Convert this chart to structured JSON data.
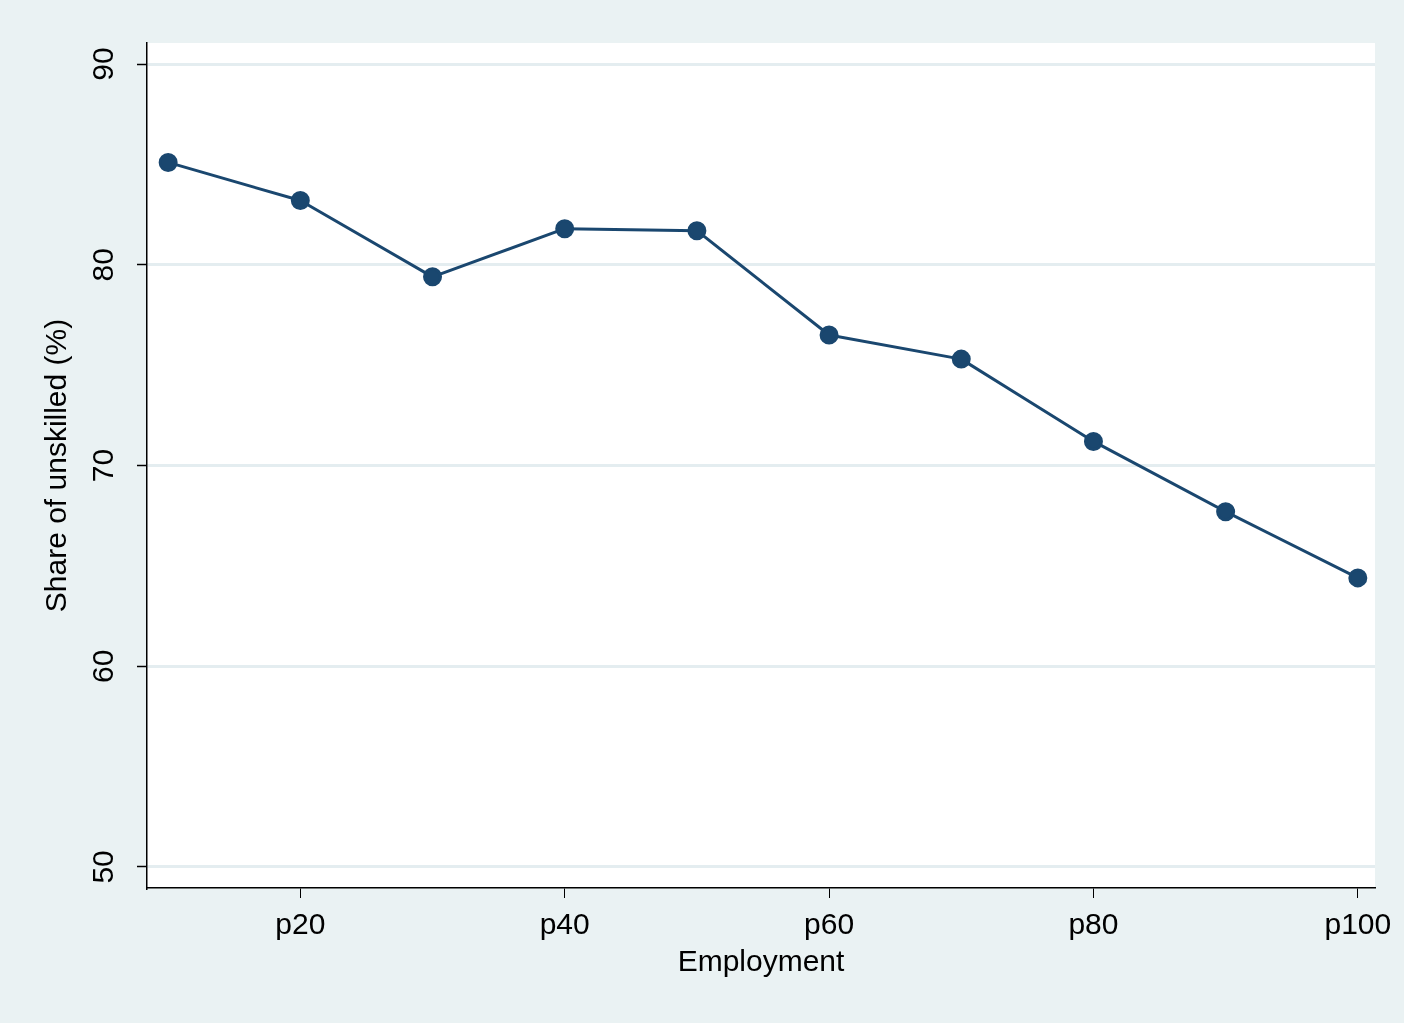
{
  "chart_data": {
    "type": "line",
    "xlabel": "Employment",
    "ylabel": "Share of unskilled (%)",
    "categories": [
      null,
      "p20",
      null,
      "p40",
      null,
      "p60",
      null,
      "p80",
      null,
      "p100"
    ],
    "series": [
      {
        "color": "#1a476f",
        "values": [
          85.1,
          83.2,
          79.4,
          81.8,
          81.7,
          76.5,
          75.3,
          71.2,
          67.7,
          64.4
        ]
      }
    ],
    "ylim": [
      48.95,
      91.05
    ],
    "yticks": [
      50,
      60,
      70,
      80,
      90
    ],
    "grid": "y",
    "legend": false,
    "marker": "circle",
    "line_style": "solid"
  }
}
